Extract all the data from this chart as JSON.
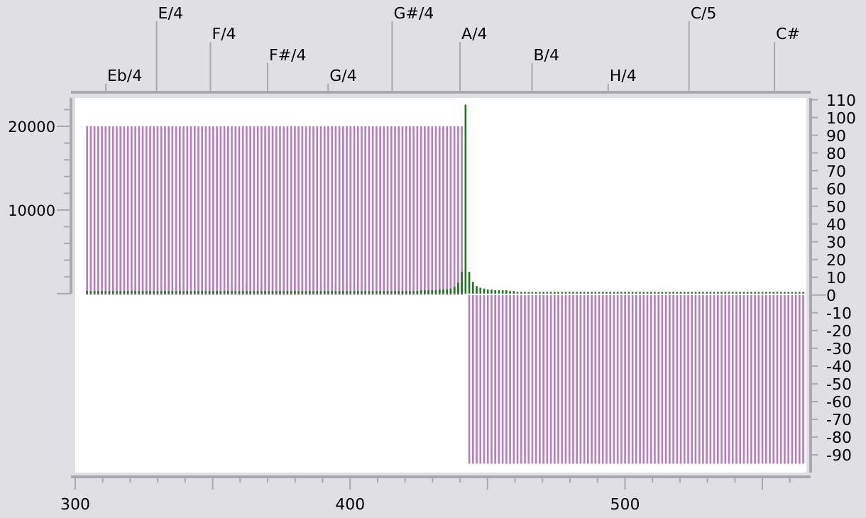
{
  "chart_data": {
    "type": "bar",
    "x": [
      304.3,
      305.65,
      307,
      308.35,
      309.7,
      311.05,
      312.4,
      313.75,
      315.1,
      316.45,
      317.8,
      319.15,
      320.5,
      321.85,
      323.2,
      324.55,
      325.9,
      327.25,
      328.6,
      329.95,
      331.3,
      332.65,
      334,
      335.35,
      336.7,
      338.05,
      339.4,
      340.75,
      342.1,
      343.45,
      344.8,
      346.15,
      347.5,
      348.85,
      350.2,
      351.55,
      352.9,
      354.25,
      355.6,
      356.95,
      358.3,
      359.65,
      361,
      362.35,
      363.7,
      365.05,
      366.4,
      367.75,
      369.1,
      370.45,
      371.8,
      373.15,
      374.5,
      375.85,
      377.2,
      378.55,
      379.9,
      381.25,
      382.6,
      383.95,
      385.3,
      386.65,
      388,
      389.35,
      390.7,
      392.05,
      393.4,
      394.75,
      396.1,
      397.45,
      398.8,
      400.15,
      401.5,
      402.85,
      404.2,
      405.55,
      406.9,
      408.25,
      409.6,
      410.95,
      412.3,
      413.65,
      415,
      416.35,
      417.7,
      419.05,
      420.4,
      421.75,
      423.1,
      424.45,
      425.8,
      427.15,
      428.5,
      429.85,
      431.2,
      432.55,
      433.9,
      435.25,
      436.6,
      437.95,
      439.3,
      440.65,
      442,
      443.35,
      444.7,
      446.05,
      447.4,
      448.75,
      450.1,
      451.45,
      452.8,
      454.15,
      455.5,
      456.85,
      458.2,
      459.55,
      460.9,
      462.25,
      463.6,
      464.95,
      466.3,
      467.65,
      469,
      470.35,
      471.7,
      473.05,
      474.4,
      475.75,
      477.1,
      478.45,
      479.8,
      481.15,
      482.5,
      483.85,
      485.2,
      486.55,
      487.9,
      489.25,
      490.6,
      491.95,
      493.3,
      494.65,
      496,
      497.35,
      498.7,
      500.05,
      501.4,
      502.75,
      504.1,
      505.45,
      506.8,
      508.15,
      509.5,
      510.85,
      512.2,
      513.55,
      514.9,
      516.25,
      517.6,
      518.95,
      520.3,
      521.65,
      523,
      524.35,
      525.7,
      527.05,
      528.4,
      529.75,
      531.1,
      532.45,
      533.8,
      535.15,
      536.5,
      537.85,
      539.2,
      540.55,
      541.9,
      543.25,
      544.6,
      545.95,
      547.3,
      548.65,
      550,
      551.35,
      552.7,
      554.05,
      555.4,
      556.75,
      558.1,
      559.45,
      560.8,
      562.15,
      563.5,
      564.85
    ],
    "series": [
      {
        "color": "#b57cc0",
        "axis": "y2",
        "values": [
          95,
          95,
          95,
          95,
          95,
          95,
          95,
          95,
          95,
          95,
          95,
          95,
          95,
          95,
          95,
          95,
          95,
          95,
          95,
          95,
          95,
          95,
          95,
          95,
          95,
          95,
          95,
          95,
          95,
          95,
          95,
          95,
          95,
          95,
          95,
          95,
          95,
          95,
          95,
          95,
          95,
          95,
          95,
          95,
          95,
          95,
          95,
          95,
          95,
          95,
          95,
          95,
          95,
          95,
          95,
          95,
          95,
          95,
          95,
          95,
          95,
          95,
          95,
          95,
          95,
          95,
          95,
          95,
          95,
          95,
          95,
          95,
          95,
          95,
          95,
          95,
          95,
          95,
          95,
          95,
          95,
          95,
          95,
          95,
          95,
          95,
          95,
          95,
          95,
          95,
          95,
          95,
          95,
          95,
          95,
          95,
          95,
          95,
          95,
          95,
          95,
          95,
          null,
          -95,
          -95,
          -95,
          -95,
          -95,
          -95,
          -95,
          -95,
          -95,
          -95,
          -95,
          -95,
          -95,
          -95,
          -95,
          -95,
          -95,
          -95,
          -95,
          -95,
          -95,
          -95,
          -95,
          -95,
          -95,
          -95,
          -95,
          -95,
          -95,
          -95,
          -95,
          -95,
          -95,
          -95,
          -95,
          -95,
          -95,
          -95,
          -95,
          -95,
          -95,
          -95,
          -95,
          -95,
          -95,
          -95,
          -95,
          -95,
          -95,
          -95,
          -95,
          -95,
          -95,
          -95,
          -95,
          -95,
          -95,
          -95,
          -95,
          -95,
          -95,
          -95,
          -95,
          -95,
          -95,
          -95,
          -95,
          -95,
          -95,
          -95,
          -95,
          -95,
          -95,
          -95,
          -95,
          -95,
          -95,
          -95,
          -95,
          -95,
          -95,
          -95,
          -95,
          -95,
          -95,
          -95,
          -95,
          -95,
          -95,
          -95,
          -95
        ]
      },
      {
        "color": "#1a7a1a",
        "values": [
          300,
          300,
          300,
          300,
          300,
          300,
          300,
          300,
          300,
          300,
          300,
          300,
          300,
          300,
          300,
          300,
          300,
          300,
          300,
          300,
          300,
          300,
          300,
          300,
          300,
          300,
          300,
          300,
          300,
          300,
          300,
          300,
          300,
          300,
          300,
          300,
          300,
          300,
          300,
          300,
          300,
          300,
          300,
          300,
          300,
          300,
          300,
          300,
          300,
          300,
          300,
          300,
          300,
          300,
          300,
          300,
          300,
          300,
          300,
          300,
          300,
          300,
          300,
          300,
          300,
          300,
          300,
          300,
          300,
          300,
          300,
          300,
          300,
          300,
          300,
          300,
          300,
          300,
          300,
          300,
          300,
          300,
          300,
          300,
          300,
          300,
          300,
          300,
          300,
          300,
          400,
          400,
          400,
          400,
          400,
          500,
          500,
          500,
          600,
          800,
          1300,
          2600,
          22600,
          2600,
          1400,
          900,
          700,
          600,
          500,
          500,
          400,
          400,
          400,
          400,
          300,
          300,
          200,
          200,
          200,
          200,
          200,
          200,
          200,
          200,
          200,
          200,
          200,
          200,
          200,
          200,
          200,
          200,
          200,
          200,
          200,
          200,
          200,
          200,
          200,
          200,
          200,
          200,
          200,
          200,
          200,
          200,
          200,
          200,
          200,
          200,
          200,
          200,
          200,
          200,
          200,
          200,
          200,
          200,
          200,
          200,
          200,
          200,
          200,
          200,
          200,
          200,
          200,
          200,
          200,
          200,
          200,
          200,
          200,
          200,
          200,
          200,
          200,
          200,
          200,
          200,
          200,
          200,
          200,
          200,
          200,
          200,
          200,
          200,
          200,
          200,
          200,
          200,
          200,
          200
        ]
      }
    ],
    "xlim": [
      300,
      566
    ],
    "xticks": [
      300,
      {
        "value": 310,
        "label": null
      },
      {
        "value": 320,
        "label": null
      },
      {
        "value": 330,
        "label": null
      },
      {
        "value": 340,
        "label": null
      },
      {
        "value": 350,
        "label": null
      },
      {
        "value": 360,
        "label": null
      },
      {
        "value": 370,
        "label": null
      },
      {
        "value": 380,
        "label": null
      },
      {
        "value": 390,
        "label": null
      },
      400,
      {
        "value": 410,
        "label": null
      },
      {
        "value": 420,
        "label": null
      },
      {
        "value": 430,
        "label": null
      },
      {
        "value": 440,
        "label": null
      },
      {
        "value": 450,
        "label": null
      },
      {
        "value": 460,
        "label": null
      },
      {
        "value": 470,
        "label": null
      },
      {
        "value": 480,
        "label": null
      },
      {
        "value": 490,
        "label": null
      },
      500,
      {
        "value": 510,
        "label": null
      },
      {
        "value": 520,
        "label": null
      },
      {
        "value": 530,
        "label": null
      },
      {
        "value": 540,
        "label": null
      },
      {
        "value": 550,
        "label": null
      },
      {
        "value": 560,
        "label": null
      }
    ],
    "ref_lines": [
      {
        "axis": "x",
        "value": 311.1,
        "label": "Eb/4"
      },
      {
        "axis": "x",
        "value": 329.6,
        "label": "E/4"
      },
      {
        "axis": "x",
        "value": 349.2,
        "label": "F/4"
      },
      {
        "axis": "x",
        "value": 370,
        "label": "F#/4"
      },
      {
        "axis": "x",
        "value": 392,
        "label": "G/4"
      },
      {
        "axis": "x",
        "value": 415.3,
        "label": "G#/4"
      },
      {
        "axis": "x",
        "value": 440,
        "label": "A/4"
      },
      {
        "axis": "x",
        "value": 466.2,
        "label": "B/4"
      },
      {
        "axis": "x",
        "value": 493.9,
        "label": "H/4"
      },
      {
        "axis": "x",
        "value": 523.3,
        "label": "C/5"
      },
      {
        "axis": "x",
        "value": 554.4,
        "label": "C#"
      }
    ],
    "ylim": [
      -21400,
      23400
    ],
    "yticks": [
      {
        "value": 0,
        "label": null
      },
      {
        "value": 2000,
        "label": null
      },
      {
        "value": 4000,
        "label": null
      },
      {
        "value": 6000,
        "label": null
      },
      {
        "value": 8000,
        "label": null
      },
      10000,
      {
        "value": 12000,
        "label": null
      },
      {
        "value": 14000,
        "label": null
      },
      {
        "value": 16000,
        "label": null
      },
      {
        "value": 18000,
        "label": null
      },
      20000,
      {
        "value": 22000,
        "label": null
      }
    ],
    "y2lim": [
      -100,
      111
    ],
    "y2ticks": [
      -90,
      -80,
      -70,
      -60,
      -50,
      -40,
      -30,
      -20,
      -10,
      0,
      10,
      20,
      30,
      40,
      50,
      60,
      70,
      80,
      90,
      100,
      110
    ]
  }
}
